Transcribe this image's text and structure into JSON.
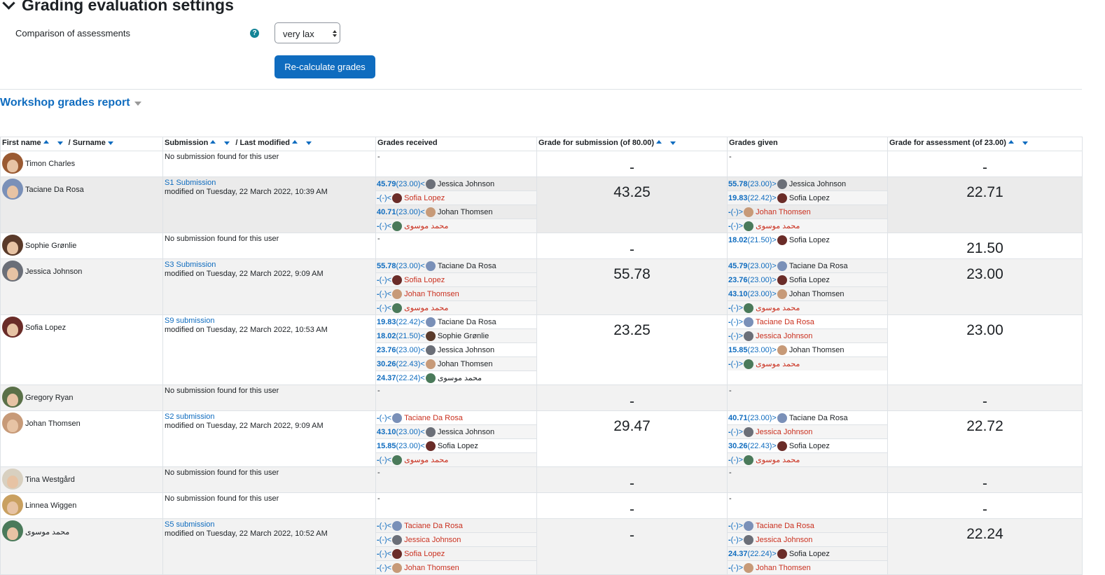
{
  "settings": {
    "section_title": "Grading evaluation settings",
    "comparison_label": "Comparison of assessments",
    "help_icon": "question-circle-icon",
    "comparison_value": "very lax",
    "recalc_button": "Re-calculate grades"
  },
  "report": {
    "title": "Workshop grades report",
    "headers": {
      "first_name": "First name",
      "surname": "/ Surname",
      "submission": "Submission",
      "last_modified": "/ Last modified",
      "grades_received": "Grades received",
      "grade_submission": "Grade for submission (of 80.00)",
      "grades_given": "Grades given",
      "grade_assessment": "Grade for assessment (of 23.00)"
    },
    "rows": [
      {
        "name": "Timon Charles",
        "avatar": "#9a5a32",
        "sub_title": "",
        "sub_text": "No submission found for this user",
        "received": [],
        "received_empty": "-",
        "grade_sub": "-",
        "given": [],
        "given_empty": "-",
        "grade_assess": "-"
      },
      {
        "name": "Taciane Da Rosa",
        "avatar": "#7a90b8",
        "sub_title": "S1 Submission",
        "sub_text": "modified on Tuesday, 22 March 2022, 10:39 AM",
        "received": [
          {
            "g": "45.79",
            "p": " (23.00)<",
            "who": "Jessica Johnson",
            "red": false,
            "c": "#6b6f78"
          },
          {
            "g": "-",
            "p": " (-)<",
            "who": "Sofia Lopez",
            "red": true,
            "c": "#6a2c28"
          },
          {
            "g": "40.71",
            "p": " (23.00)<",
            "who": "Johan Thomsen",
            "red": false,
            "c": "#c79a78"
          },
          {
            "g": "-",
            "p": " (-)<",
            "who": "محمد موسوی",
            "red": true,
            "c": "#4a7a5a"
          }
        ],
        "grade_sub": "43.25",
        "given": [
          {
            "g": "55.78",
            "p": " (23.00)>",
            "who": "Jessica Johnson",
            "red": false,
            "c": "#6b6f78"
          },
          {
            "g": "19.83",
            "p": " (22.42)>",
            "who": "Sofia Lopez",
            "red": false,
            "c": "#6a2c28"
          },
          {
            "g": "-",
            "p": " (-)>",
            "who": "Johan Thomsen",
            "red": true,
            "c": "#c79a78"
          },
          {
            "g": "-",
            "p": " (-)>",
            "who": "محمد موسوی",
            "red": true,
            "c": "#4a7a5a"
          }
        ],
        "grade_assess": "22.71"
      },
      {
        "name": "Sophie Grønlie",
        "avatar": "#5a3a2a",
        "sub_title": "",
        "sub_text": "No submission found for this user",
        "received": [],
        "received_empty": "-",
        "grade_sub": "-",
        "given": [
          {
            "g": "18.02",
            "p": " (21.50)>",
            "who": "Sofia Lopez",
            "red": false,
            "c": "#6a2c28"
          }
        ],
        "grade_assess": "21.50"
      },
      {
        "name": "Jessica Johnson",
        "avatar": "#6b6f78",
        "sub_title": "S3 Submission",
        "sub_text": "modified on Tuesday, 22 March 2022, 9:09 AM",
        "received": [
          {
            "g": "55.78",
            "p": " (23.00)<",
            "who": "Taciane Da Rosa",
            "red": false,
            "c": "#7a90b8"
          },
          {
            "g": "-",
            "p": " (-)<",
            "who": "Sofia Lopez",
            "red": true,
            "c": "#6a2c28"
          },
          {
            "g": "-",
            "p": " (-)<",
            "who": "Johan Thomsen",
            "red": true,
            "c": "#c79a78"
          },
          {
            "g": "-",
            "p": " (-)<",
            "who": "محمد موسوی",
            "red": true,
            "c": "#4a7a5a"
          }
        ],
        "grade_sub": "55.78",
        "given": [
          {
            "g": "45.79",
            "p": " (23.00)>",
            "who": "Taciane Da Rosa",
            "red": false,
            "c": "#7a90b8"
          },
          {
            "g": "23.76",
            "p": " (23.00)>",
            "who": "Sofia Lopez",
            "red": false,
            "c": "#6a2c28"
          },
          {
            "g": "43.10",
            "p": " (23.00)>",
            "who": "Johan Thomsen",
            "red": false,
            "c": "#c79a78"
          },
          {
            "g": "-",
            "p": " (-)>",
            "who": "محمد موسوی",
            "red": true,
            "c": "#4a7a5a"
          }
        ],
        "grade_assess": "23.00"
      },
      {
        "name": "Sofia Lopez",
        "avatar": "#6a2c28",
        "sub_title": "S9 submission",
        "sub_text": "modified on Tuesday, 22 March 2022, 10:53 AM",
        "received": [
          {
            "g": "19.83",
            "p": " (22.42)<",
            "who": "Taciane Da Rosa",
            "red": false,
            "c": "#7a90b8"
          },
          {
            "g": "18.02",
            "p": " (21.50)<",
            "who": "Sophie Grønlie",
            "red": false,
            "c": "#5a3a2a"
          },
          {
            "g": "23.76",
            "p": " (23.00)<",
            "who": "Jessica Johnson",
            "red": false,
            "c": "#6b6f78"
          },
          {
            "g": "30.26",
            "p": " (22.43)<",
            "who": "Johan Thomsen",
            "red": false,
            "c": "#c79a78"
          },
          {
            "g": "24.37",
            "p": " (22.24)<",
            "who": "محمد موسوی",
            "red": false,
            "c": "#4a7a5a"
          }
        ],
        "grade_sub": "23.25",
        "given": [
          {
            "g": "-",
            "p": " (-)>",
            "who": "Taciane Da Rosa",
            "red": true,
            "c": "#7a90b8"
          },
          {
            "g": "-",
            "p": " (-)>",
            "who": "Jessica Johnson",
            "red": true,
            "c": "#6b6f78"
          },
          {
            "g": "15.85",
            "p": " (23.00)>",
            "who": "Johan Thomsen",
            "red": false,
            "c": "#c79a78"
          },
          {
            "g": "-",
            "p": " (-)>",
            "who": "محمد موسوی",
            "red": true,
            "c": "#4a7a5a"
          }
        ],
        "grade_assess": "23.00"
      },
      {
        "name": "Gregory Ryan",
        "avatar": "#5a7048",
        "sub_title": "",
        "sub_text": "No submission found for this user",
        "received": [],
        "received_empty": "-",
        "grade_sub": "-",
        "given": [],
        "given_empty": "-",
        "grade_assess": "-"
      },
      {
        "name": "Johan Thomsen",
        "avatar": "#c79a78",
        "sub_title": "S2 submission",
        "sub_text": "modified on Tuesday, 22 March 2022, 9:09 AM",
        "received": [
          {
            "g": "-",
            "p": " (-)<",
            "who": "Taciane Da Rosa",
            "red": true,
            "c": "#7a90b8"
          },
          {
            "g": "43.10",
            "p": " (23.00)<",
            "who": "Jessica Johnson",
            "red": false,
            "c": "#6b6f78"
          },
          {
            "g": "15.85",
            "p": " (23.00)<",
            "who": "Sofia Lopez",
            "red": false,
            "c": "#6a2c28"
          },
          {
            "g": "-",
            "p": " (-)<",
            "who": "محمد موسوی",
            "red": true,
            "c": "#4a7a5a"
          }
        ],
        "grade_sub": "29.47",
        "given": [
          {
            "g": "40.71",
            "p": " (23.00)>",
            "who": "Taciane Da Rosa",
            "red": false,
            "c": "#7a90b8"
          },
          {
            "g": "-",
            "p": " (-)>",
            "who": "Jessica Johnson",
            "red": true,
            "c": "#6b6f78"
          },
          {
            "g": "30.26",
            "p": " (22.43)>",
            "who": "Sofia Lopez",
            "red": false,
            "c": "#6a2c28"
          },
          {
            "g": "-",
            "p": " (-)>",
            "who": "محمد موسوی",
            "red": true,
            "c": "#4a7a5a"
          }
        ],
        "grade_assess": "22.72"
      },
      {
        "name": "Tina Westgård",
        "avatar": "#d8d0c0",
        "sub_title": "",
        "sub_text": "No submission found for this user",
        "received": [],
        "received_empty": "-",
        "grade_sub": "-",
        "given": [],
        "given_empty": "-",
        "grade_assess": "-"
      },
      {
        "name": "Linnea Wiggen",
        "avatar": "#c9a060",
        "sub_title": "",
        "sub_text": "No submission found for this user",
        "received": [],
        "received_empty": "-",
        "grade_sub": "-",
        "given": [],
        "given_empty": "-",
        "grade_assess": "-"
      },
      {
        "name": "محمد موسوی",
        "avatar": "#4a7a5a",
        "sub_title": "S5 submission",
        "sub_text": "modified on Tuesday, 22 March 2022, 10:52 AM",
        "received": [
          {
            "g": "-",
            "p": " (-)<",
            "who": "Taciane Da Rosa",
            "red": true,
            "c": "#7a90b8"
          },
          {
            "g": "-",
            "p": " (-)<",
            "who": "Jessica Johnson",
            "red": true,
            "c": "#6b6f78"
          },
          {
            "g": "-",
            "p": " (-)<",
            "who": "Sofia Lopez",
            "red": true,
            "c": "#6a2c28"
          },
          {
            "g": "-",
            "p": " (-)<",
            "who": "Johan Thomsen",
            "red": true,
            "c": "#c79a78"
          }
        ],
        "grade_sub": "-",
        "given": [
          {
            "g": "-",
            "p": " (-)>",
            "who": "Taciane Da Rosa",
            "red": true,
            "c": "#7a90b8"
          },
          {
            "g": "-",
            "p": " (-)>",
            "who": "Jessica Johnson",
            "red": true,
            "c": "#6b6f78"
          },
          {
            "g": "24.37",
            "p": " (22.24)>",
            "who": "Sofia Lopez",
            "red": false,
            "c": "#6a2c28"
          },
          {
            "g": "-",
            "p": " (-)>",
            "who": "Johan Thomsen",
            "red": true,
            "c": "#c79a78"
          }
        ],
        "grade_assess": "22.24"
      }
    ]
  }
}
